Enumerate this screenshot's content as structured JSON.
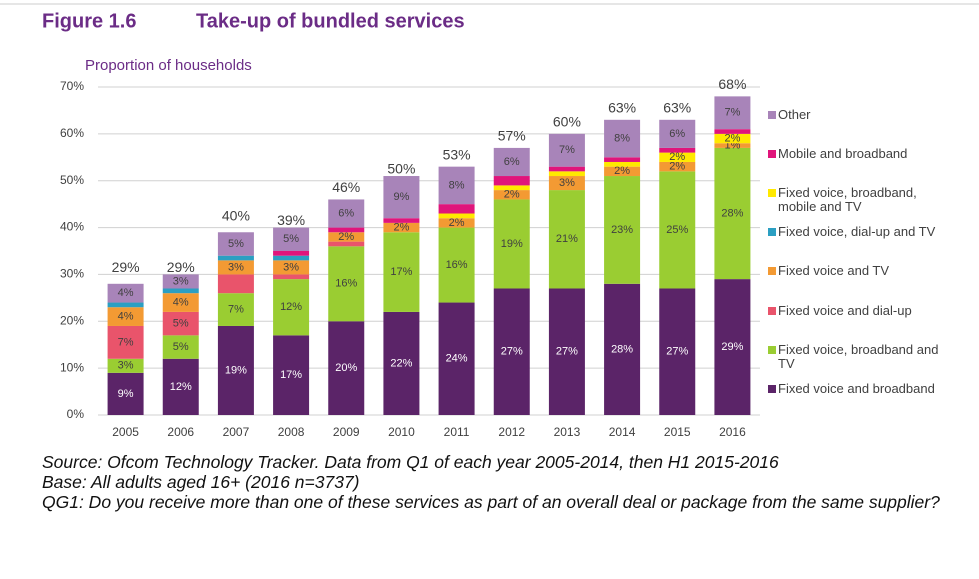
{
  "chart_data": {
    "type": "stacked_bar",
    "figure_label": "Figure 1.6",
    "title": "Take-up of bundled services",
    "y_label": "Proportion of households",
    "categories": [
      "2005",
      "2006",
      "2007",
      "2008",
      "2009",
      "2010",
      "2011",
      "2012",
      "2013",
      "2014",
      "2015",
      "2016"
    ],
    "series": [
      {
        "name": "Fixed voice and broadband",
        "color": "#5b2468",
        "values": [
          9,
          12,
          19,
          17,
          20,
          22,
          24,
          27,
          27,
          28,
          27,
          29
        ],
        "value_labels": [
          "9%",
          "12%",
          "19%",
          "17%",
          "20%",
          "22%",
          "24%",
          "27%",
          "27%",
          "28%",
          "27%",
          "29%"
        ]
      },
      {
        "name": "Fixed voice, broadband and TV",
        "color": "#9acd32",
        "values": [
          3,
          5,
          7,
          12,
          16,
          17,
          16,
          19,
          21,
          23,
          25,
          28
        ],
        "value_labels": [
          "3%",
          "5%",
          "7%",
          "12%",
          "16%",
          "17%",
          "16%",
          "19%",
          "21%",
          "23%",
          "25%",
          "28%"
        ]
      },
      {
        "name": "Fixed voice and dial-up",
        "color": "#e9546b",
        "values": [
          7,
          5,
          4,
          1,
          1,
          0,
          0,
          0,
          0,
          0,
          0,
          0
        ],
        "value_labels": [
          "7%",
          "5%",
          null,
          null,
          null,
          null,
          null,
          null,
          null,
          null,
          null,
          null
        ]
      },
      {
        "name": "Fixed voice and TV",
        "color": "#f39a33",
        "values": [
          4,
          4,
          3,
          3,
          2,
          2,
          2,
          2,
          3,
          2,
          2,
          1
        ],
        "value_labels": [
          "4%",
          "4%",
          "3%",
          "3%",
          "2%",
          "2%",
          "2%",
          "2%",
          "3%",
          "2%",
          "2%",
          "1%"
        ]
      },
      {
        "name": "Fixed voice, dial-up and TV",
        "color": "#2b9fc2",
        "values": [
          1,
          1,
          1,
          1,
          0,
          0,
          0,
          0,
          0,
          0,
          0,
          0
        ],
        "value_labels": [
          null,
          null,
          null,
          null,
          null,
          null,
          null,
          null,
          null,
          null,
          null,
          null
        ]
      },
      {
        "name": "Fixed voice, broadband, mobile and TV",
        "color": "#ffe900",
        "values": [
          0,
          0,
          0,
          0,
          0,
          0,
          1,
          1,
          1,
          1,
          2,
          2
        ],
        "value_labels": [
          null,
          null,
          null,
          null,
          null,
          null,
          null,
          null,
          null,
          null,
          "2%",
          "2%"
        ]
      },
      {
        "name": "Mobile and broadband",
        "color": "#e0157b",
        "values": [
          0,
          0,
          0,
          1,
          1,
          1,
          2,
          2,
          1,
          1,
          1,
          1
        ],
        "value_labels": [
          null,
          null,
          null,
          null,
          null,
          null,
          null,
          null,
          null,
          null,
          null,
          null
        ]
      },
      {
        "name": "Other",
        "color": "#a884b9",
        "values": [
          4,
          3,
          5,
          5,
          6,
          9,
          8,
          6,
          7,
          8,
          6,
          7
        ],
        "value_labels": [
          "4%",
          "3%",
          "5%",
          "5%",
          "6%",
          "9%",
          "8%",
          "6%",
          "7%",
          "8%",
          "6%",
          "7%"
        ]
      }
    ],
    "totals": [
      29,
      29,
      40,
      39,
      46,
      50,
      53,
      57,
      60,
      63,
      63,
      68
    ],
    "total_labels": [
      "29%",
      "29%",
      "40%",
      "39%",
      "46%",
      "50%",
      "53%",
      "57%",
      "60%",
      "63%",
      "63%",
      "68%"
    ],
    "ylim": [
      0,
      70
    ],
    "yticks": [
      {
        "value": 0,
        "label": "0%"
      },
      {
        "value": 10,
        "label": "10%"
      },
      {
        "value": 20,
        "label": "20%"
      },
      {
        "value": 30,
        "label": "30%"
      },
      {
        "value": 40,
        "label": "40%"
      },
      {
        "value": 50,
        "label": "50%"
      },
      {
        "value": 60,
        "label": "60%"
      },
      {
        "value": 70,
        "label": "70%"
      }
    ],
    "grid": true,
    "legend": "right",
    "notes": [
      "Source: Ofcom Technology Tracker. Data from Q1 of each year 2005-2014, then H1 2015-2016",
      "Base: All adults aged 16+ (2016 n=3737)",
      "QG1: Do you receive more than one of these services as part of an overall deal or package from the same supplier?"
    ]
  }
}
